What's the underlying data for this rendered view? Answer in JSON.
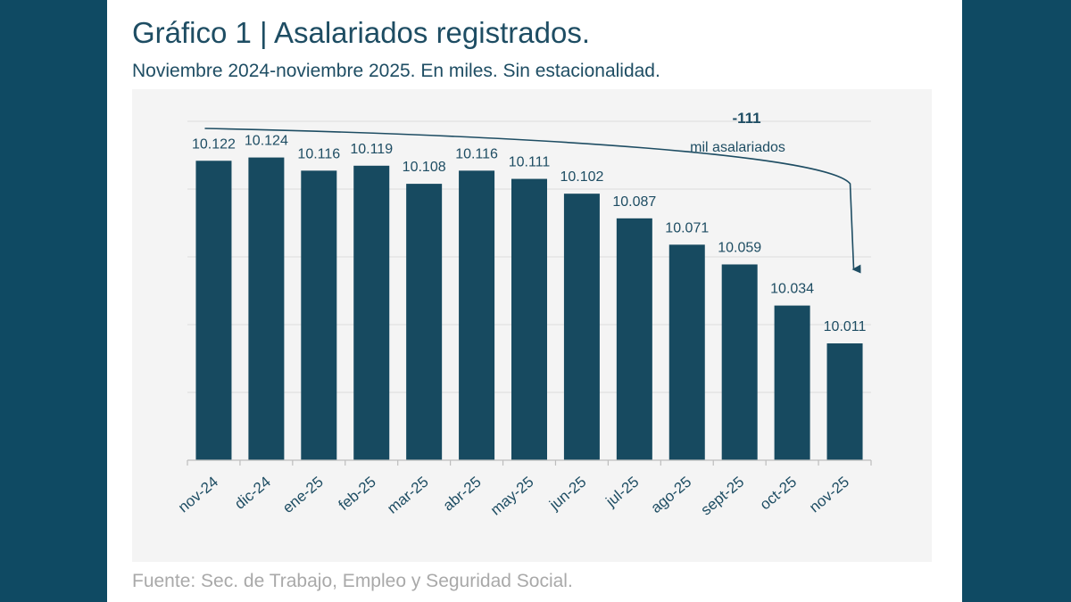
{
  "title": "Gráfico 1 | Asalariados registrados.",
  "subtitle": "Noviembre 2024-noviembre 2025. En miles. Sin estacionalidad.",
  "source": "Fuente: Sec. de Trabajo, Empleo y Seguridad Social.",
  "colors": {
    "page_background": "#0f4a63",
    "bar": "#174a60",
    "text": "#1e4d63",
    "source_text": "#a9a9a9",
    "gridline": "#dcdcdc"
  },
  "chart_data": {
    "type": "bar",
    "categories": [
      "nov-24",
      "dic-24",
      "ene-25",
      "feb-25",
      "mar-25",
      "abr-25",
      "may-25",
      "jun-25",
      "jul-25",
      "ago-25",
      "sept-25",
      "oct-25",
      "nov-25"
    ],
    "values": [
      10122,
      10124,
      10116,
      10119,
      10108,
      10116,
      10111,
      10102,
      10087,
      10071,
      10059,
      10034,
      10011
    ],
    "value_labels": [
      "10.122",
      "10.124",
      "10.116",
      "10.119",
      "10.108",
      "10.116",
      "10.111",
      "10.102",
      "10.087",
      "10.071",
      "10.059",
      "10.034",
      "10.011"
    ],
    "title": "Asalariados registrados",
    "xlabel": "",
    "ylabel": "",
    "ylim": [
      9940,
      10146
    ],
    "grid": true,
    "annotation": {
      "value": "-111",
      "text": "mil asalariados",
      "from": "nov-24",
      "to": "nov-25"
    }
  }
}
